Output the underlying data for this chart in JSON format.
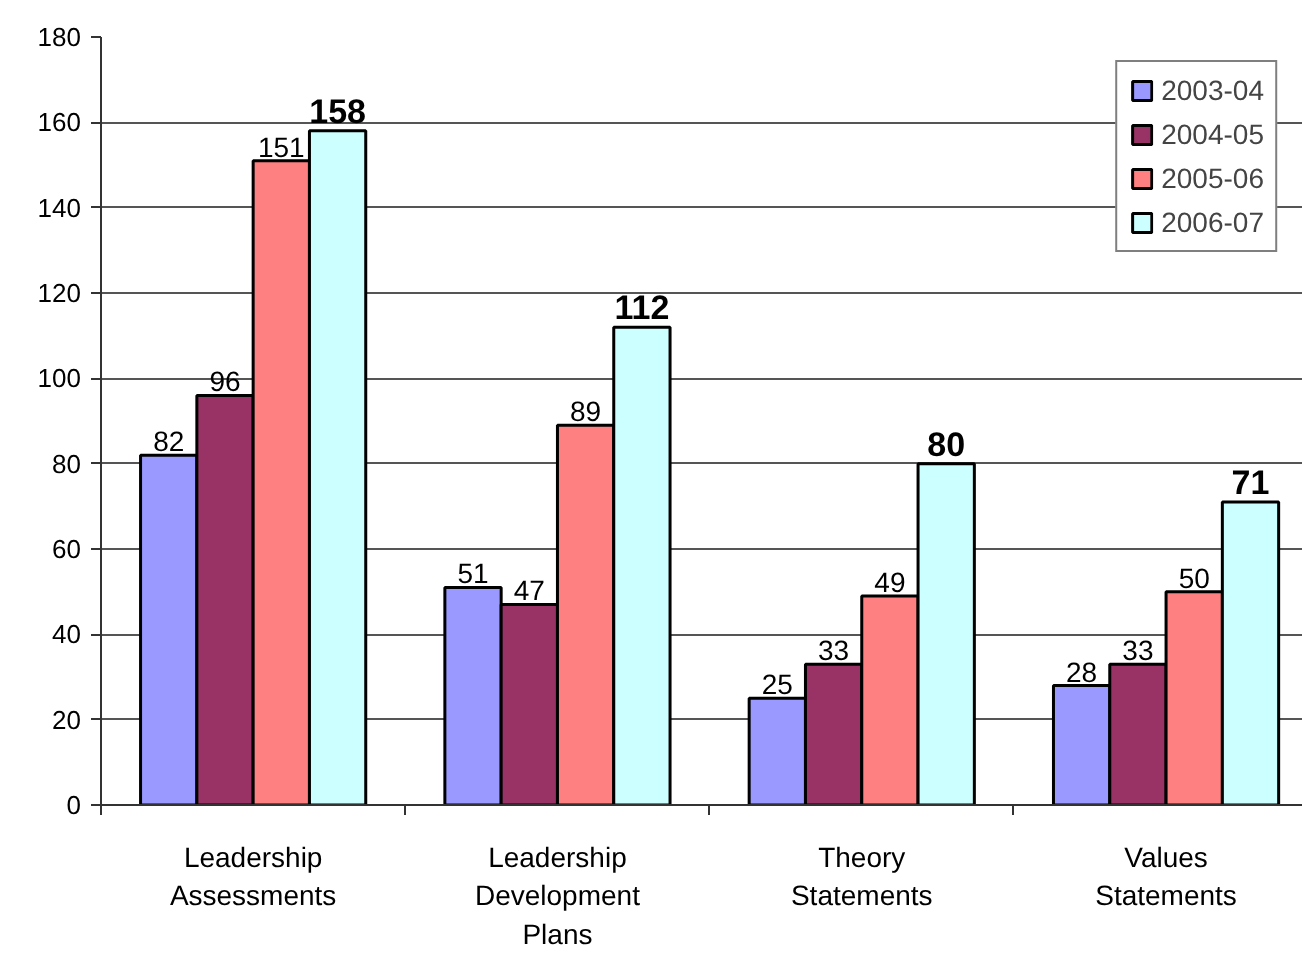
{
  "chart_data": {
    "type": "bar",
    "categories": [
      "Leadership Assessments",
      "Leadership Development Plans",
      "Theory Statements",
      "Values Statements"
    ],
    "series": [
      {
        "name": "2003-04",
        "color": "#9999ff",
        "values": [
          82,
          51,
          25,
          28
        ]
      },
      {
        "name": "2004-05",
        "color": "#993366",
        "values": [
          96,
          47,
          33,
          33
        ]
      },
      {
        "name": "2005-06",
        "color": "#ff8080",
        "values": [
          151,
          89,
          49,
          50
        ]
      },
      {
        "name": "2006-07",
        "color": "#ccffff",
        "values": [
          158,
          112,
          80,
          71
        ]
      }
    ],
    "ylim": [
      0,
      180
    ],
    "yticks": [
      0,
      20,
      40,
      60,
      80,
      100,
      120,
      140,
      160,
      180
    ],
    "grid": "y",
    "legend": "top right",
    "data_labels": true
  }
}
